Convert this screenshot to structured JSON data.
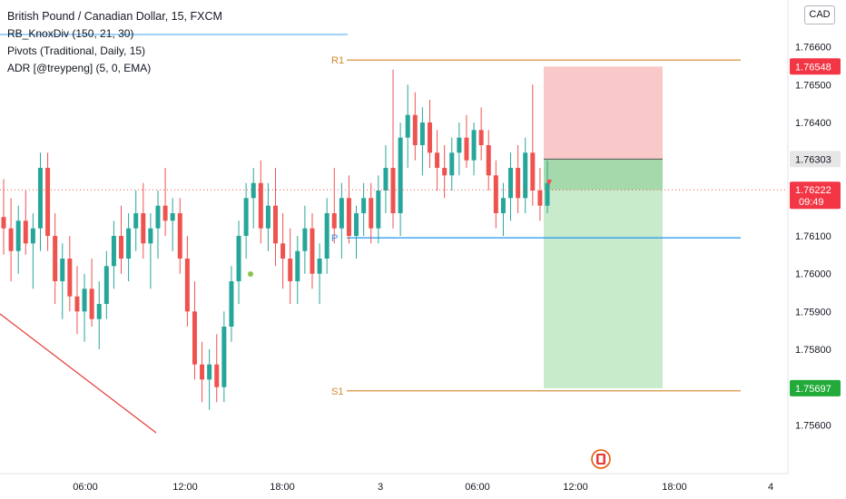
{
  "legend": {
    "title": "British Pound / Canadian Dollar, 15, FXCM",
    "indicators": [
      "RB_KnoxDiv (150, 21, 30)",
      "Pivots (Traditional, Daily, 15)",
      "ADR [@treypeng] (5, 0, EMA)"
    ]
  },
  "currency_button": "CAD",
  "colors": {
    "up": "#26a69a",
    "down": "#ef5350",
    "pivot_r1_s1": "#d4872b",
    "pivot_p": "#2196f3",
    "stop_zone": "#f8c9c8",
    "target_zone": "#c8ebcc",
    "entry_zone": "#a5d9ab",
    "trendline": "#e53935"
  },
  "chart_data": {
    "type": "candlestick",
    "timeframe": "15",
    "y_axis": {
      "ylim": [
        1.755,
        1.767
      ],
      "ticks": [
        "1.76600",
        "1.76500",
        "1.76400",
        "1.76300",
        "1.76200",
        "1.76100",
        "1.76000",
        "1.75900",
        "1.75800",
        "1.75700",
        "1.75600"
      ],
      "tick_values": [
        1.766,
        1.765,
        1.764,
        1.763,
        1.762,
        1.761,
        1.76,
        1.759,
        1.758,
        1.757,
        1.756
      ]
    },
    "x_axis": {
      "ticks": [
        "06:00",
        "12:00",
        "18:00",
        "3",
        "06:00",
        "12:00",
        "18:00",
        "4"
      ]
    },
    "pivots": [
      {
        "label": "R1",
        "value": 1.76565
      },
      {
        "label": "P",
        "value": 1.76095
      },
      {
        "label": "S1",
        "value": 1.7569
      }
    ],
    "price_labels": [
      {
        "value": 1.76548,
        "text": "1.76548",
        "kind": "stop"
      },
      {
        "value": 1.76303,
        "text": "1.76303",
        "kind": "entry"
      },
      {
        "value": 1.76222,
        "text": "1.76222",
        "sub": "09:49",
        "kind": "last"
      },
      {
        "value": 1.75697,
        "text": "1.75697",
        "kind": "target"
      }
    ],
    "position": {
      "type": "short",
      "entry": 1.76303,
      "stop": 1.76548,
      "target": 1.75697
    },
    "last_price": 1.76222,
    "candles": [
      [
        1.7615,
        1.7625,
        1.7605,
        1.7612
      ],
      [
        1.7612,
        1.762,
        1.7598,
        1.7606
      ],
      [
        1.7606,
        1.7618,
        1.76,
        1.7614
      ],
      [
        1.7614,
        1.7622,
        1.7605,
        1.7608
      ],
      [
        1.7608,
        1.7616,
        1.7596,
        1.7612
      ],
      [
        1.7612,
        1.7632,
        1.7606,
        1.7628
      ],
      [
        1.7628,
        1.7632,
        1.7606,
        1.761
      ],
      [
        1.761,
        1.7616,
        1.7592,
        1.7598
      ],
      [
        1.7598,
        1.7608,
        1.7588,
        1.7604
      ],
      [
        1.7604,
        1.761,
        1.759,
        1.7594
      ],
      [
        1.7594,
        1.7602,
        1.7584,
        1.759
      ],
      [
        1.759,
        1.76,
        1.7582,
        1.7596
      ],
      [
        1.7596,
        1.7604,
        1.7586,
        1.7588
      ],
      [
        1.7588,
        1.7598,
        1.758,
        1.7592
      ],
      [
        1.7592,
        1.7606,
        1.7588,
        1.7602
      ],
      [
        1.7602,
        1.7614,
        1.7596,
        1.761
      ],
      [
        1.761,
        1.7618,
        1.76,
        1.7604
      ],
      [
        1.7604,
        1.7616,
        1.7598,
        1.7612
      ],
      [
        1.7612,
        1.7622,
        1.7606,
        1.7616
      ],
      [
        1.7616,
        1.7624,
        1.7604,
        1.7608
      ],
      [
        1.7608,
        1.7616,
        1.7596,
        1.7612
      ],
      [
        1.7612,
        1.7622,
        1.7604,
        1.7618
      ],
      [
        1.7618,
        1.7628,
        1.761,
        1.7614
      ],
      [
        1.7614,
        1.762,
        1.7606,
        1.7616
      ],
      [
        1.7616,
        1.762,
        1.76,
        1.7604
      ],
      [
        1.7604,
        1.761,
        1.7586,
        1.759
      ],
      [
        1.759,
        1.7598,
        1.7572,
        1.7576
      ],
      [
        1.7576,
        1.7582,
        1.7566,
        1.7572
      ],
      [
        1.7572,
        1.758,
        1.7564,
        1.7576
      ],
      [
        1.7576,
        1.7584,
        1.7566,
        1.757
      ],
      [
        1.757,
        1.759,
        1.7566,
        1.7586
      ],
      [
        1.7586,
        1.7602,
        1.7582,
        1.7598
      ],
      [
        1.7598,
        1.7614,
        1.7592,
        1.761
      ],
      [
        1.761,
        1.7624,
        1.7604,
        1.762
      ],
      [
        1.762,
        1.7628,
        1.7612,
        1.7624
      ],
      [
        1.7624,
        1.763,
        1.7608,
        1.7612
      ],
      [
        1.7612,
        1.7624,
        1.7606,
        1.7618
      ],
      [
        1.7618,
        1.7628,
        1.7602,
        1.7608
      ],
      [
        1.7608,
        1.7616,
        1.7596,
        1.7604
      ],
      [
        1.7604,
        1.7612,
        1.7592,
        1.7598
      ],
      [
        1.7598,
        1.761,
        1.7592,
        1.7606
      ],
      [
        1.7606,
        1.7618,
        1.76,
        1.7612
      ],
      [
        1.7612,
        1.7616,
        1.7596,
        1.76
      ],
      [
        1.76,
        1.7608,
        1.7592,
        1.7604
      ],
      [
        1.7604,
        1.762,
        1.76,
        1.7616
      ],
      [
        1.7616,
        1.7628,
        1.7608,
        1.7612
      ],
      [
        1.7612,
        1.7624,
        1.7604,
        1.762
      ],
      [
        1.762,
        1.7626,
        1.7608,
        1.761
      ],
      [
        1.761,
        1.7618,
        1.7604,
        1.7616
      ],
      [
        1.7616,
        1.7624,
        1.761,
        1.762
      ],
      [
        1.762,
        1.7624,
        1.7608,
        1.7612
      ],
      [
        1.7612,
        1.7626,
        1.7608,
        1.7622
      ],
      [
        1.7622,
        1.7634,
        1.7616,
        1.7628
      ],
      [
        1.7628,
        1.7654,
        1.7612,
        1.7616
      ],
      [
        1.7616,
        1.764,
        1.761,
        1.7636
      ],
      [
        1.7636,
        1.765,
        1.7628,
        1.7642
      ],
      [
        1.7642,
        1.7648,
        1.763,
        1.7634
      ],
      [
        1.7634,
        1.7644,
        1.7626,
        1.764
      ],
      [
        1.764,
        1.7646,
        1.7628,
        1.7632
      ],
      [
        1.7632,
        1.7638,
        1.7622,
        1.7628
      ],
      [
        1.7628,
        1.7634,
        1.762,
        1.7626
      ],
      [
        1.7626,
        1.7636,
        1.7622,
        1.7632
      ],
      [
        1.7632,
        1.764,
        1.7626,
        1.7636
      ],
      [
        1.7636,
        1.7642,
        1.7628,
        1.763
      ],
      [
        1.763,
        1.764,
        1.7626,
        1.7638
      ],
      [
        1.7638,
        1.7644,
        1.763,
        1.7634
      ],
      [
        1.7634,
        1.7638,
        1.7622,
        1.7626
      ],
      [
        1.7626,
        1.763,
        1.7612,
        1.7616
      ],
      [
        1.7616,
        1.7624,
        1.761,
        1.762
      ],
      [
        1.762,
        1.7632,
        1.7614,
        1.7628
      ],
      [
        1.7628,
        1.7634,
        1.7616,
        1.762
      ],
      [
        1.762,
        1.7636,
        1.7616,
        1.7632
      ],
      [
        1.7632,
        1.765,
        1.7618,
        1.7622
      ],
      [
        1.7622,
        1.7628,
        1.7614,
        1.7618
      ],
      [
        1.7618,
        1.763,
        1.7616,
        1.7624
      ]
    ]
  }
}
